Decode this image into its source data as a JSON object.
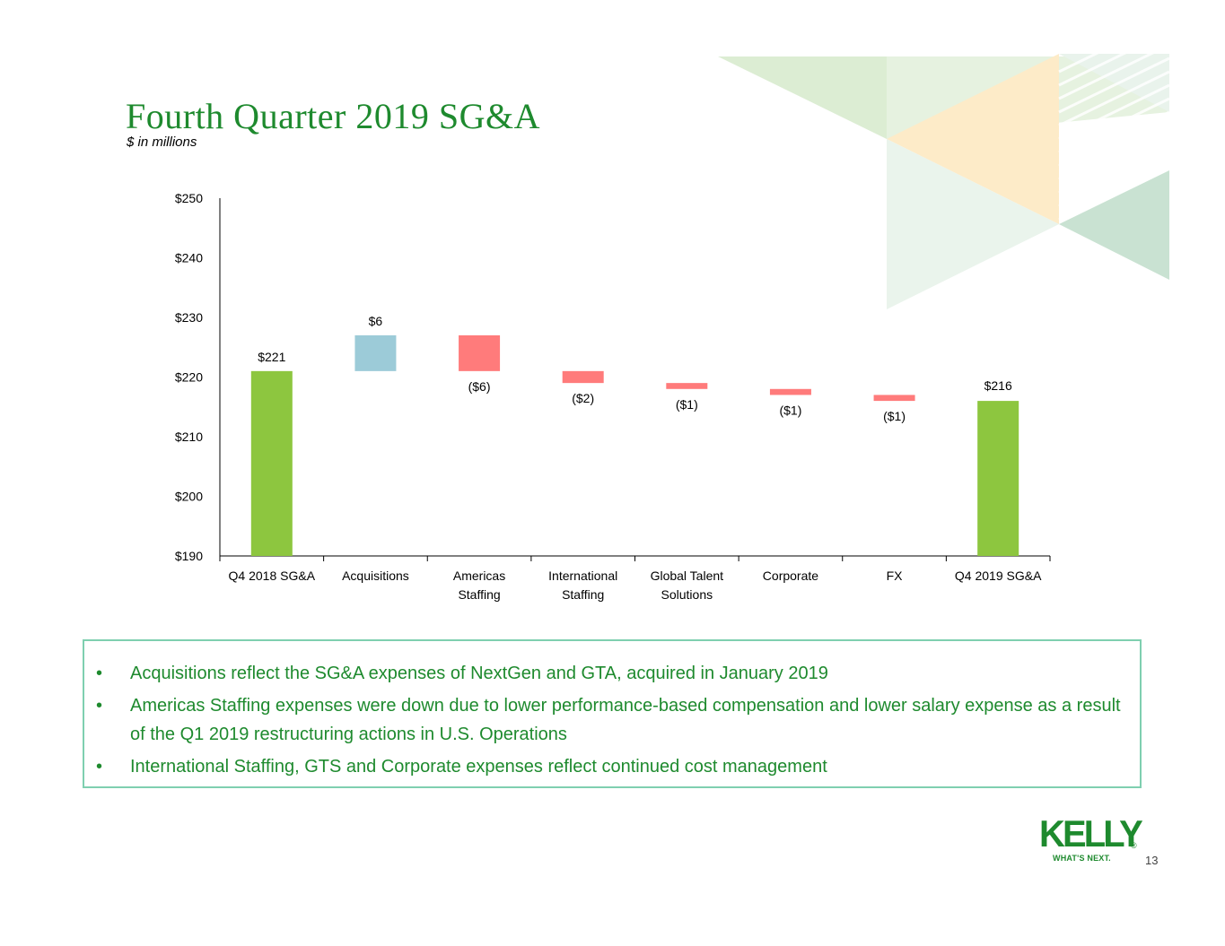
{
  "slide": {
    "title": "Fourth Quarter 2019 SG&A",
    "subtitle": "$ in millions",
    "page_number": "13"
  },
  "colors": {
    "title_green": "#1e8a2e",
    "total_bar": "#8dc63f",
    "increase_bar": "#9ccbd8",
    "decrease_bar": "#ff7b7b",
    "notes_border": "#7fcfb0"
  },
  "chart_data": {
    "type": "waterfall",
    "title": "",
    "xlabel": "",
    "ylabel": "",
    "ylim": [
      190,
      250
    ],
    "y_ticks": [
      190,
      200,
      210,
      220,
      230,
      240,
      250
    ],
    "y_tick_labels": [
      "$190",
      "$200",
      "$210",
      "$220",
      "$230",
      "$240",
      "$250"
    ],
    "categories": [
      [
        "Q4 2018 SG&A"
      ],
      [
        "Acquisitions"
      ],
      [
        "Americas",
        "Staffing"
      ],
      [
        "International",
        "Staffing"
      ],
      [
        "Global Talent",
        "Solutions"
      ],
      [
        "Corporate"
      ],
      [
        "FX"
      ],
      [
        "Q4 2019 SG&A"
      ]
    ],
    "bars": [
      {
        "kind": "total",
        "start": 190,
        "end": 221,
        "label": "$221"
      },
      {
        "kind": "increase",
        "start": 221,
        "end": 227,
        "label": "$6"
      },
      {
        "kind": "decrease",
        "start": 227,
        "end": 221,
        "label": "($6)"
      },
      {
        "kind": "decrease",
        "start": 221,
        "end": 219,
        "label": "($2)"
      },
      {
        "kind": "decrease",
        "start": 219,
        "end": 218,
        "label": "($1)"
      },
      {
        "kind": "decrease",
        "start": 218,
        "end": 217,
        "label": "($1)"
      },
      {
        "kind": "decrease",
        "start": 217,
        "end": 216,
        "label": "($1)"
      },
      {
        "kind": "total",
        "start": 190,
        "end": 216,
        "label": "$216"
      }
    ]
  },
  "notes": {
    "items": [
      {
        "bullet": "•",
        "text": "Acquisitions reflect the SG&A expenses of NextGen and GTA, acquired in January 2019"
      },
      {
        "bullet": "•",
        "text": "Americas Staffing expenses were down due to lower performance-based compensation and lower salary expense as a result of the Q1 2019 restructuring actions in U.S. Operations"
      },
      {
        "bullet": "•",
        "text": "International Staffing, GTS and Corporate expenses reflect continued cost management"
      }
    ]
  },
  "logo": {
    "brand": "KELLY",
    "registered": "®",
    "tagline": "WHAT'S NEXT."
  }
}
